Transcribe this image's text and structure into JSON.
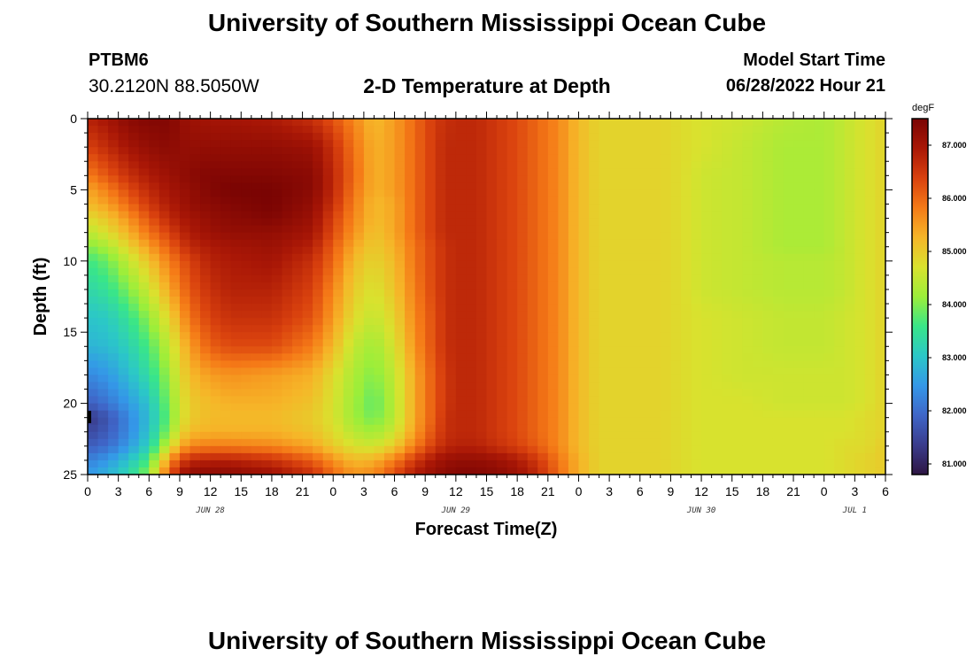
{
  "header": {
    "title": "University of Southern Mississippi Ocean Cube",
    "station": "PTBM6",
    "coords": "30.2120N  88.5050W",
    "subtitle": "2-D Temperature at Depth",
    "model_start_label": "Model Start Time",
    "model_start_value": "06/28/2022 Hour 21"
  },
  "footer": {
    "title": "University of Southern Mississippi Ocean Cube"
  },
  "chart_data": {
    "type": "heatmap",
    "title": "2-D Temperature at Depth",
    "xlabel": "Forecast Time(Z)",
    "ylabel": "Depth (ft)",
    "x_range_hours": [
      0,
      78
    ],
    "x_tick_labels": [
      "0",
      "3",
      "6",
      "9",
      "12",
      "15",
      "18",
      "21",
      "0",
      "3",
      "6",
      "9",
      "12",
      "15",
      "18",
      "21",
      "0",
      "3",
      "6",
      "9",
      "12",
      "15",
      "18",
      "21",
      "0",
      "3",
      "6"
    ],
    "date_labels": [
      {
        "text": "JUN 28",
        "hour": 12
      },
      {
        "text": "JUN 29",
        "hour": 36
      },
      {
        "text": "JUN 30",
        "hour": 60
      },
      {
        "text": "JUL 1",
        "hour": 75
      }
    ],
    "y_range_ft": [
      0,
      25
    ],
    "y_ticks": [
      0,
      5,
      10,
      15,
      20,
      25
    ],
    "colorbar": {
      "unit": "degF",
      "min": 80.8,
      "max": 87.5,
      "ticks": [
        "81.000",
        "82.000",
        "83.000",
        "84.000",
        "85.000",
        "86.000",
        "87.000"
      ],
      "colors": [
        "#2e1543",
        "#3a3c8c",
        "#3f66c8",
        "#3498e8",
        "#2bc7c8",
        "#39e688",
        "#9cee3a",
        "#d9e22e",
        "#f6b528",
        "#f57a17",
        "#d9410e",
        "#a91706",
        "#7a0403"
      ]
    },
    "grid_depths_ft": [
      0,
      2,
      4,
      5,
      6,
      7,
      8,
      9,
      10,
      12,
      14,
      16,
      18,
      20,
      21,
      22,
      23,
      24,
      25
    ],
    "grid_hours": [
      0,
      2,
      4,
      6,
      8,
      9,
      10,
      12,
      14,
      18,
      22,
      24,
      26,
      28,
      30,
      32,
      34,
      35,
      36,
      38,
      40,
      42,
      44,
      46,
      48,
      50,
      52,
      54,
      56,
      58,
      60,
      64,
      68,
      72,
      74,
      76,
      78
    ],
    "temperature_degF": [
      [
        86.8,
        87.0,
        87.3,
        87.4,
        87.4,
        87.2,
        87.1,
        87.0,
        87.0,
        86.9,
        86.6,
        86.2,
        85.7,
        85.2,
        85.5,
        86.0,
        86.5,
        86.6,
        86.7,
        86.7,
        86.5,
        86.3,
        86.0,
        85.7,
        85.2,
        84.9,
        84.9,
        84.9,
        84.9,
        84.8,
        84.7,
        84.6,
        84.4,
        84.3,
        84.5,
        84.7,
        84.9
      ],
      [
        86.4,
        86.7,
        87.0,
        87.2,
        87.3,
        87.2,
        87.2,
        87.2,
        87.2,
        87.2,
        87.1,
        86.6,
        85.9,
        85.3,
        85.5,
        86.0,
        86.5,
        86.7,
        86.7,
        86.7,
        86.5,
        86.3,
        86.0,
        85.7,
        85.2,
        84.9,
        84.9,
        84.9,
        84.9,
        84.8,
        84.7,
        84.5,
        84.3,
        84.3,
        84.5,
        84.7,
        84.9
      ],
      [
        85.8,
        86.2,
        86.6,
        86.9,
        87.1,
        87.2,
        87.3,
        87.4,
        87.4,
        87.4,
        87.3,
        86.7,
        86.0,
        85.3,
        85.5,
        86.0,
        86.5,
        86.7,
        86.7,
        86.7,
        86.5,
        86.3,
        86.0,
        85.7,
        85.2,
        84.9,
        84.9,
        84.9,
        84.9,
        84.8,
        84.6,
        84.5,
        84.3,
        84.3,
        84.5,
        84.7,
        84.9
      ],
      [
        85.4,
        85.8,
        86.3,
        86.7,
        87.0,
        87.1,
        87.2,
        87.4,
        87.5,
        87.5,
        87.3,
        86.7,
        85.9,
        85.3,
        85.5,
        86.0,
        86.5,
        86.7,
        86.7,
        86.7,
        86.5,
        86.3,
        86.0,
        85.7,
        85.2,
        84.9,
        84.9,
        84.9,
        84.9,
        84.8,
        84.6,
        84.5,
        84.3,
        84.3,
        84.5,
        84.7,
        84.9
      ],
      [
        85.2,
        85.5,
        86.0,
        86.5,
        86.9,
        87.0,
        87.2,
        87.3,
        87.4,
        87.5,
        87.2,
        86.6,
        85.8,
        85.2,
        85.4,
        86.0,
        86.5,
        86.7,
        86.7,
        86.7,
        86.5,
        86.3,
        86.0,
        85.7,
        85.2,
        84.9,
        84.9,
        84.9,
        84.9,
        84.8,
        84.6,
        84.5,
        84.3,
        84.3,
        84.5,
        84.7,
        84.9
      ],
      [
        84.8,
        85.1,
        85.6,
        86.2,
        86.7,
        86.9,
        87.0,
        87.2,
        87.3,
        87.4,
        87.1,
        86.4,
        85.7,
        85.2,
        85.4,
        86.0,
        86.5,
        86.7,
        86.7,
        86.7,
        86.5,
        86.3,
        86.0,
        85.7,
        85.2,
        84.9,
        84.9,
        84.9,
        84.9,
        84.8,
        84.6,
        84.5,
        84.3,
        84.3,
        84.5,
        84.7,
        84.9
      ],
      [
        84.4,
        84.8,
        85.3,
        85.9,
        86.4,
        86.7,
        86.9,
        87.1,
        87.2,
        87.2,
        87.0,
        86.3,
        85.6,
        85.1,
        85.4,
        86.0,
        86.5,
        86.7,
        86.7,
        86.7,
        86.5,
        86.3,
        86.0,
        85.7,
        85.2,
        84.9,
        84.9,
        84.9,
        84.9,
        84.8,
        84.6,
        84.5,
        84.3,
        84.3,
        84.5,
        84.7,
        84.9
      ],
      [
        84.0,
        84.3,
        84.9,
        85.5,
        86.1,
        86.4,
        86.7,
        86.9,
        87.0,
        87.1,
        86.8,
        86.1,
        85.4,
        85.0,
        85.3,
        85.9,
        86.4,
        86.6,
        86.7,
        86.7,
        86.5,
        86.3,
        86.0,
        85.7,
        85.2,
        84.9,
        84.9,
        84.9,
        84.9,
        84.8,
        84.6,
        84.5,
        84.3,
        84.3,
        84.5,
        84.7,
        84.9
      ],
      [
        83.6,
        83.9,
        84.5,
        85.1,
        85.8,
        86.1,
        86.4,
        86.8,
        86.9,
        87.0,
        86.6,
        86.0,
        85.2,
        84.9,
        85.2,
        85.9,
        86.4,
        86.6,
        86.7,
        86.7,
        86.5,
        86.3,
        86.0,
        85.7,
        85.2,
        84.9,
        84.9,
        84.9,
        84.9,
        84.8,
        84.6,
        84.5,
        84.4,
        84.4,
        84.5,
        84.7,
        84.9
      ],
      [
        83.3,
        83.5,
        84.0,
        84.6,
        85.4,
        85.8,
        86.2,
        86.6,
        86.8,
        86.8,
        86.4,
        85.7,
        85.0,
        84.7,
        85.1,
        85.8,
        86.4,
        86.6,
        86.7,
        86.7,
        86.5,
        86.3,
        86.0,
        85.7,
        85.2,
        84.9,
        84.9,
        84.9,
        84.9,
        84.8,
        84.6,
        84.5,
        84.4,
        84.4,
        84.5,
        84.7,
        84.9
      ],
      [
        83.0,
        83.1,
        83.5,
        84.1,
        84.9,
        85.4,
        85.9,
        86.4,
        86.6,
        86.6,
        86.2,
        85.5,
        84.8,
        84.5,
        84.9,
        85.7,
        86.3,
        86.6,
        86.7,
        86.7,
        86.5,
        86.3,
        86.0,
        85.7,
        85.2,
        84.9,
        84.9,
        84.9,
        84.9,
        84.8,
        84.7,
        84.6,
        84.5,
        84.5,
        84.6,
        84.7,
        84.9
      ],
      [
        82.8,
        82.9,
        83.2,
        83.7,
        84.5,
        85.0,
        85.5,
        86.1,
        86.3,
        86.3,
        85.8,
        85.2,
        84.5,
        84.2,
        84.7,
        85.6,
        86.3,
        86.6,
        86.7,
        86.7,
        86.5,
        86.3,
        86.0,
        85.7,
        85.2,
        84.9,
        84.9,
        84.9,
        84.9,
        84.8,
        84.7,
        84.6,
        84.5,
        84.5,
        84.6,
        84.7,
        84.9
      ],
      [
        82.3,
        82.5,
        82.9,
        83.4,
        84.2,
        84.8,
        85.2,
        85.5,
        85.6,
        85.5,
        85.3,
        84.8,
        84.3,
        84.0,
        84.5,
        85.4,
        86.2,
        86.5,
        86.7,
        86.7,
        86.5,
        86.3,
        86.0,
        85.7,
        85.2,
        84.9,
        84.9,
        84.9,
        84.9,
        84.8,
        84.7,
        84.6,
        84.6,
        84.6,
        84.6,
        84.7,
        84.9
      ],
      [
        81.8,
        82.1,
        82.5,
        83.0,
        84.0,
        84.6,
        85.0,
        85.2,
        85.3,
        85.3,
        85.1,
        84.7,
        84.2,
        83.8,
        84.4,
        85.4,
        86.2,
        86.5,
        86.7,
        86.7,
        86.5,
        86.3,
        86.0,
        85.7,
        85.2,
        84.9,
        84.9,
        84.9,
        84.9,
        84.8,
        84.7,
        84.7,
        84.6,
        84.6,
        84.6,
        84.7,
        84.9
      ],
      [
        81.3,
        81.7,
        82.3,
        82.9,
        83.9,
        84.6,
        85.0,
        85.2,
        85.2,
        85.2,
        85.0,
        84.7,
        84.2,
        83.9,
        84.4,
        85.4,
        86.2,
        86.6,
        86.7,
        86.7,
        86.5,
        86.3,
        86.0,
        85.7,
        85.2,
        84.9,
        84.9,
        84.9,
        84.9,
        84.8,
        84.7,
        84.7,
        84.7,
        84.7,
        84.7,
        84.8,
        84.9
      ],
      [
        81.5,
        81.8,
        82.3,
        83.0,
        84.1,
        84.8,
        85.2,
        85.3,
        85.3,
        85.3,
        85.1,
        84.8,
        84.4,
        84.2,
        84.6,
        85.5,
        86.3,
        86.6,
        86.7,
        86.7,
        86.5,
        86.3,
        86.0,
        85.7,
        85.2,
        84.9,
        84.9,
        84.9,
        84.9,
        84.8,
        84.7,
        84.7,
        84.7,
        84.7,
        84.7,
        84.8,
        84.9
      ],
      [
        81.8,
        82.0,
        82.5,
        83.2,
        84.6,
        85.3,
        85.7,
        85.8,
        85.8,
        85.7,
        85.4,
        85.0,
        84.7,
        84.6,
        85.0,
        85.8,
        86.5,
        86.7,
        86.8,
        86.8,
        86.6,
        86.4,
        86.1,
        85.7,
        85.2,
        84.9,
        84.9,
        84.9,
        84.9,
        84.8,
        84.7,
        84.7,
        84.7,
        84.7,
        84.8,
        84.8,
        85.0
      ],
      [
        82.2,
        82.5,
        83.0,
        83.7,
        85.6,
        86.3,
        86.7,
        86.8,
        86.8,
        86.6,
        86.1,
        85.6,
        85.2,
        85.3,
        85.8,
        86.5,
        87.0,
        87.1,
        87.2,
        87.2,
        87.1,
        86.9,
        86.5,
        85.9,
        85.3,
        84.9,
        84.9,
        84.9,
        84.9,
        84.8,
        84.7,
        84.7,
        84.7,
        84.7,
        84.8,
        84.9,
        85.0
      ],
      [
        82.5,
        82.8,
        83.3,
        84.1,
        86.2,
        86.9,
        87.3,
        87.3,
        87.3,
        87.1,
        86.6,
        86.0,
        85.6,
        85.7,
        86.3,
        86.9,
        87.2,
        87.3,
        87.4,
        87.4,
        87.3,
        87.1,
        86.7,
        86.0,
        85.3,
        84.9,
        84.9,
        84.9,
        84.9,
        84.8,
        84.7,
        84.7,
        84.7,
        84.7,
        84.8,
        84.9,
        85.0
      ]
    ]
  }
}
